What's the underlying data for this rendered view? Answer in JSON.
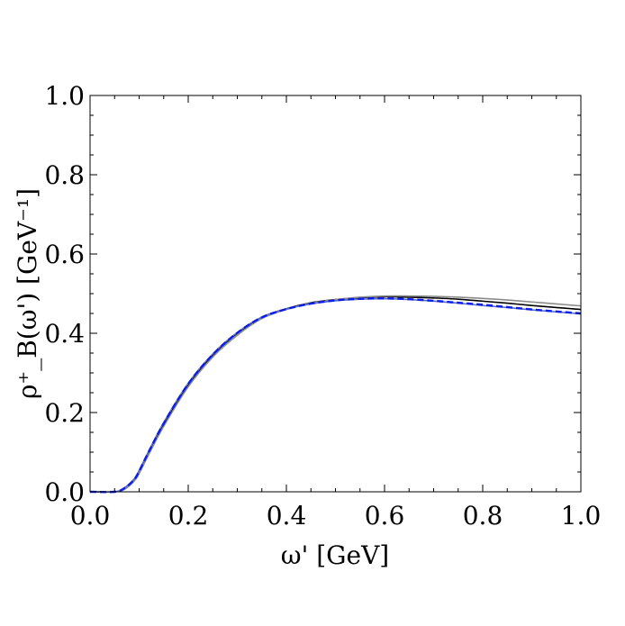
{
  "chart_data": {
    "type": "line",
    "title": "",
    "xlabel": "ω' [GeV]",
    "ylabel": "ρ⁺_B(ω') [GeV⁻¹]",
    "xlim": [
      0.0,
      1.0
    ],
    "ylim": [
      0.0,
      1.0
    ],
    "xticks": [
      "0.0",
      "0.2",
      "0.4",
      "0.6",
      "0.8",
      "1.0"
    ],
    "yticks": [
      "0.0",
      "0.2",
      "0.4",
      "0.6",
      "0.8",
      "1.0"
    ],
    "grid": false,
    "legend": "none",
    "series": [
      {
        "name": "solid-black",
        "color": "#000000",
        "dash": "solid",
        "x": [
          0.0,
          0.05,
          0.07,
          0.09,
          0.1,
          0.12,
          0.15,
          0.2,
          0.25,
          0.3,
          0.35,
          0.4,
          0.45,
          0.5,
          0.55,
          0.6,
          0.65,
          0.7,
          0.75,
          0.8,
          0.85,
          0.9,
          0.95,
          1.0
        ],
        "y": [
          0.0,
          0.0,
          0.008,
          0.03,
          0.05,
          0.1,
          0.17,
          0.27,
          0.345,
          0.4,
          0.44,
          0.462,
          0.477,
          0.485,
          0.49,
          0.492,
          0.491,
          0.489,
          0.486,
          0.481,
          0.476,
          0.47,
          0.465,
          0.46
        ]
      },
      {
        "name": "solid-gray",
        "color": "#8c8c8c",
        "dash": "solid",
        "x": [
          0.0,
          0.05,
          0.07,
          0.09,
          0.1,
          0.12,
          0.15,
          0.2,
          0.25,
          0.3,
          0.35,
          0.4,
          0.45,
          0.5,
          0.55,
          0.6,
          0.65,
          0.7,
          0.75,
          0.8,
          0.85,
          0.9,
          0.95,
          1.0
        ],
        "y": [
          0.0,
          0.0,
          0.006,
          0.027,
          0.046,
          0.095,
          0.165,
          0.265,
          0.34,
          0.395,
          0.437,
          0.46,
          0.476,
          0.485,
          0.491,
          0.494,
          0.494,
          0.493,
          0.491,
          0.488,
          0.484,
          0.479,
          0.474,
          0.469
        ]
      },
      {
        "name": "solid-blue",
        "color": "#5a6ad6",
        "dash": "solid",
        "x": [
          0.0,
          0.05,
          0.07,
          0.09,
          0.1,
          0.12,
          0.15,
          0.2,
          0.25,
          0.3,
          0.35,
          0.4,
          0.45,
          0.5,
          0.55,
          0.6,
          0.65,
          0.7,
          0.75,
          0.8,
          0.85,
          0.9,
          0.95,
          1.0
        ],
        "y": [
          0.0,
          0.0,
          0.01,
          0.033,
          0.054,
          0.104,
          0.175,
          0.274,
          0.348,
          0.402,
          0.441,
          0.461,
          0.474,
          0.482,
          0.486,
          0.487,
          0.485,
          0.481,
          0.476,
          0.47,
          0.465,
          0.459,
          0.454,
          0.449
        ]
      },
      {
        "name": "dashed-blue",
        "color": "#0a1ee6",
        "dash": "dashed",
        "x": [
          0.0,
          0.05,
          0.07,
          0.09,
          0.1,
          0.12,
          0.15,
          0.2,
          0.25,
          0.3,
          0.35,
          0.4,
          0.45,
          0.5,
          0.55,
          0.6,
          0.65,
          0.7,
          0.75,
          0.8,
          0.85,
          0.9,
          0.95,
          1.0
        ],
        "y": [
          0.0,
          0.0,
          0.009,
          0.031,
          0.052,
          0.102,
          0.172,
          0.272,
          0.346,
          0.401,
          0.44,
          0.461,
          0.475,
          0.483,
          0.487,
          0.488,
          0.486,
          0.482,
          0.477,
          0.472,
          0.466,
          0.46,
          0.455,
          0.45
        ]
      }
    ]
  }
}
